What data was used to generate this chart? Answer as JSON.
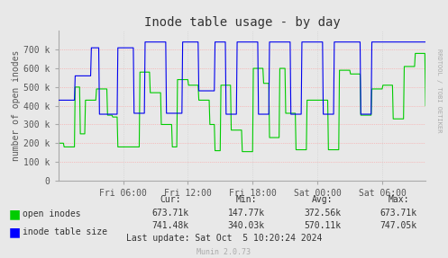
{
  "title": "Inode table usage - by day",
  "ylabel": "number of open inodes",
  "ylim": [
    0,
    800000
  ],
  "yticks": [
    0,
    100000,
    200000,
    300000,
    400000,
    500000,
    600000,
    700000
  ],
  "ytick_labels": [
    "0",
    "100 k",
    "200 k",
    "300 k",
    "400 k",
    "500 k",
    "600 k",
    "700 k"
  ],
  "bg_color": "#e8e8e8",
  "plot_bg_color": "#e8e8e8",
  "grid_color_h": "#ff9999",
  "grid_color_v": "#dddddd",
  "green_color": "#00cc00",
  "blue_color": "#0000ff",
  "legend_items": [
    "open inodes",
    "inode table size"
  ],
  "cur_label": "Cur:",
  "min_label": "Min:",
  "avg_label": "Avg:",
  "max_label": "Max:",
  "open_inodes_stats": {
    "cur": "673.71k",
    "min": "147.77k",
    "avg": "372.56k",
    "max": "673.71k"
  },
  "inode_table_stats": {
    "cur": "741.48k",
    "min": "340.03k",
    "avg": "570.11k",
    "max": "747.05k"
  },
  "last_update": "Last update: Sat Oct  5 10:20:24 2024",
  "munin_version": "Munin 2.0.73",
  "xtick_labels": [
    "Fri 06:00",
    "Fri 12:00",
    "Fri 18:00",
    "Sat 00:00",
    "Sat 06:00"
  ],
  "watermark": "RRDTOOL / TOBI OETIKER"
}
